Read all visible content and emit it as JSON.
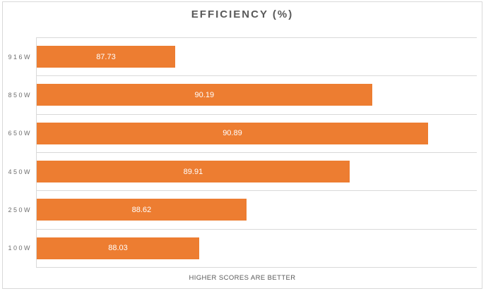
{
  "chart_data": {
    "type": "bar",
    "orientation": "horizontal",
    "title": "EFFICIENCY (%)",
    "categories": [
      "916W",
      "850W",
      "650W",
      "450W",
      "250W",
      "100W"
    ],
    "values": [
      87.73,
      90.19,
      90.89,
      89.91,
      88.62,
      88.03
    ],
    "value_labels": [
      "87.73",
      "90.19",
      "90.89",
      "89.91",
      "88.62",
      "88.03"
    ],
    "xlim": [
      86,
      91.5
    ],
    "xlabel": "",
    "ylabel": "",
    "footer": "HIGHER SCORES ARE BETTER",
    "legend_position": "none",
    "grid": "horizontal-category-lines",
    "colors": {
      "bar": "#ED7D31",
      "bar_value_text": "#FFFFFF",
      "title_text": "#595959",
      "axis_text": "#6E6E6E",
      "footer_text": "#595959",
      "gridline": "#D9D9D9",
      "background": "#FFFFFF"
    }
  }
}
